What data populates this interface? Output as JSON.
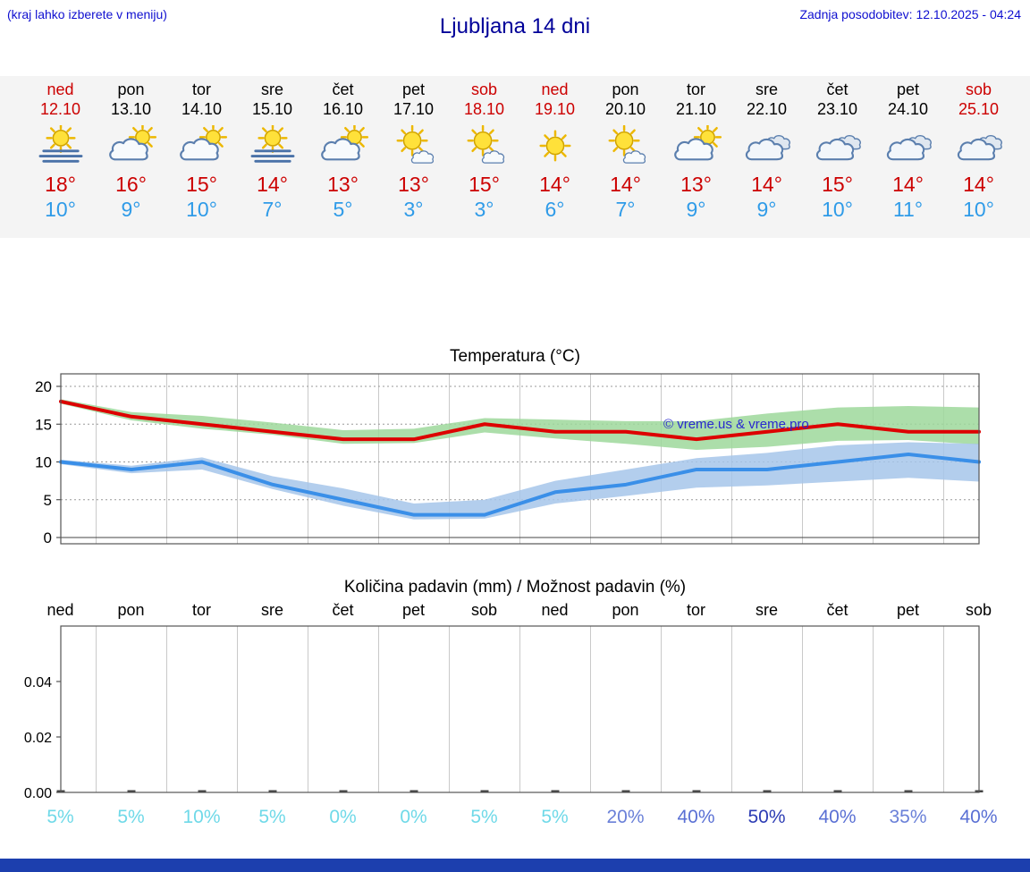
{
  "header": {
    "hint": "(kraj lahko izberete v meniju)",
    "title": "Ljubljana 14 dni",
    "updated": "Zadnja posodobitev: 12.10.2025 - 04:24"
  },
  "colors": {
    "holiday_red": "#cc0000",
    "weekday_black": "#000000",
    "temp_max_red": "#cc0000",
    "temp_min_blue": "#2f9be8",
    "strip_bg": "#f4f4f4",
    "bottom_bar_blue": "#1c3fae"
  },
  "days": [
    {
      "name": "ned",
      "date": "12.10",
      "holiday": true,
      "icon": "sun-fog",
      "tmax": "18°",
      "tmin": "10°"
    },
    {
      "name": "pon",
      "date": "13.10",
      "holiday": false,
      "icon": "sun-cloud",
      "tmax": "16°",
      "tmin": "9°"
    },
    {
      "name": "tor",
      "date": "14.10",
      "holiday": false,
      "icon": "sun-cloud",
      "tmax": "15°",
      "tmin": "10°"
    },
    {
      "name": "sre",
      "date": "15.10",
      "holiday": false,
      "icon": "sun-fog",
      "tmax": "14°",
      "tmin": "7°"
    },
    {
      "name": "čet",
      "date": "16.10",
      "holiday": false,
      "icon": "sun-cloud",
      "tmax": "13°",
      "tmin": "5°"
    },
    {
      "name": "pet",
      "date": "17.10",
      "holiday": false,
      "icon": "sun-small-cloud",
      "tmax": "13°",
      "tmin": "3°"
    },
    {
      "name": "sob",
      "date": "18.10",
      "holiday": true,
      "icon": "sun-small-cloud",
      "tmax": "15°",
      "tmin": "3°"
    },
    {
      "name": "ned",
      "date": "19.10",
      "holiday": true,
      "icon": "sun",
      "tmax": "14°",
      "tmin": "6°"
    },
    {
      "name": "pon",
      "date": "20.10",
      "holiday": false,
      "icon": "sun-small-cloud",
      "tmax": "14°",
      "tmin": "7°"
    },
    {
      "name": "tor",
      "date": "21.10",
      "holiday": false,
      "icon": "sun-cloud",
      "tmax": "13°",
      "tmin": "9°"
    },
    {
      "name": "sre",
      "date": "22.10",
      "holiday": false,
      "icon": "clouds",
      "tmax": "14°",
      "tmin": "9°"
    },
    {
      "name": "čet",
      "date": "23.10",
      "holiday": false,
      "icon": "clouds",
      "tmax": "15°",
      "tmin": "10°"
    },
    {
      "name": "pet",
      "date": "24.10",
      "holiday": false,
      "icon": "clouds",
      "tmax": "14°",
      "tmin": "11°"
    },
    {
      "name": "sob",
      "date": "25.10",
      "holiday": true,
      "icon": "clouds",
      "tmax": "14°",
      "tmin": "10°"
    }
  ],
  "chart_data": [
    {
      "type": "line",
      "title": "Temperatura (°C)",
      "categories": [
        "ned 12.10",
        "pon 13.10",
        "tor 14.10",
        "sre 15.10",
        "čet 16.10",
        "pet 17.10",
        "sob 18.10",
        "ned 19.10",
        "pon 20.10",
        "tor 21.10",
        "sre 22.10",
        "čet 23.10",
        "pet 24.10",
        "sob 25.10"
      ],
      "series": [
        {
          "name": "maksimalna temperatura",
          "color": "#dd0000",
          "values": [
            18,
            16,
            15,
            14,
            13,
            13,
            15,
            14,
            14,
            13,
            14,
            15,
            14,
            14
          ]
        },
        {
          "name": "minimalna temperatura",
          "color": "#3a8fe8",
          "values": [
            10,
            9,
            10,
            7,
            5,
            3,
            3,
            6,
            7,
            9,
            9,
            10,
            11,
            10
          ]
        }
      ],
      "bands": [
        {
          "name": "max-range",
          "color": "#9ed89b",
          "upper": [
            18.3,
            16.6,
            16.1,
            15.2,
            14.2,
            14.4,
            15.8,
            15.6,
            15.4,
            15.4,
            16.4,
            17.2,
            17.4,
            17.2
          ],
          "lower": [
            17.7,
            15.5,
            14.4,
            13.6,
            12.4,
            12.5,
            13.9,
            13.1,
            12.4,
            11.6,
            12.0,
            12.8,
            12.9,
            12.3
          ]
        },
        {
          "name": "min-range",
          "color": "#a6c6ea",
          "upper": [
            10.3,
            9.5,
            10.6,
            8.1,
            6.5,
            4.5,
            5.0,
            7.5,
            9.0,
            10.5,
            11.2,
            12.2,
            12.6,
            12.4
          ],
          "lower": [
            9.7,
            8.5,
            9.0,
            6.4,
            4.2,
            2.4,
            2.5,
            4.5,
            5.5,
            6.6,
            6.9,
            7.4,
            7.9,
            7.4
          ]
        }
      ],
      "yticks": [
        0,
        5,
        10,
        15,
        20
      ],
      "ylim": [
        -1,
        21.7
      ],
      "grid": "vertical solid per day, horizontal dotted per tick",
      "watermark": "© vreme.us & vreme.pro"
    },
    {
      "type": "bar",
      "title": "Količina padavin (mm) / Možnost padavin (%)",
      "categories": [
        "ned",
        "pon",
        "tor",
        "sre",
        "čet",
        "pet",
        "sob",
        "ned",
        "pon",
        "tor",
        "sre",
        "čet",
        "pet",
        "sob"
      ],
      "values": [
        0,
        0,
        0,
        0,
        0,
        0,
        0,
        0,
        0,
        0,
        0,
        0,
        0,
        0
      ],
      "yticks": [
        0,
        0.02,
        0.04
      ],
      "ylim": [
        0,
        0.06
      ],
      "probability": [
        {
          "label": "5%",
          "color": "#6fd9e8"
        },
        {
          "label": "5%",
          "color": "#6fd9e8"
        },
        {
          "label": "10%",
          "color": "#6fd9e8"
        },
        {
          "label": "5%",
          "color": "#6fd9e8"
        },
        {
          "label": "0%",
          "color": "#6fd9e8"
        },
        {
          "label": "0%",
          "color": "#6fd9e8"
        },
        {
          "label": "5%",
          "color": "#6fd9e8"
        },
        {
          "label": "5%",
          "color": "#6fd9e8"
        },
        {
          "label": "20%",
          "color": "#6a80d8"
        },
        {
          "label": "40%",
          "color": "#5a70d4"
        },
        {
          "label": "50%",
          "color": "#2c3cb4"
        },
        {
          "label": "40%",
          "color": "#5a70d4"
        },
        {
          "label": "35%",
          "color": "#6a80d8"
        },
        {
          "label": "40%",
          "color": "#5a70d4"
        }
      ]
    }
  ]
}
